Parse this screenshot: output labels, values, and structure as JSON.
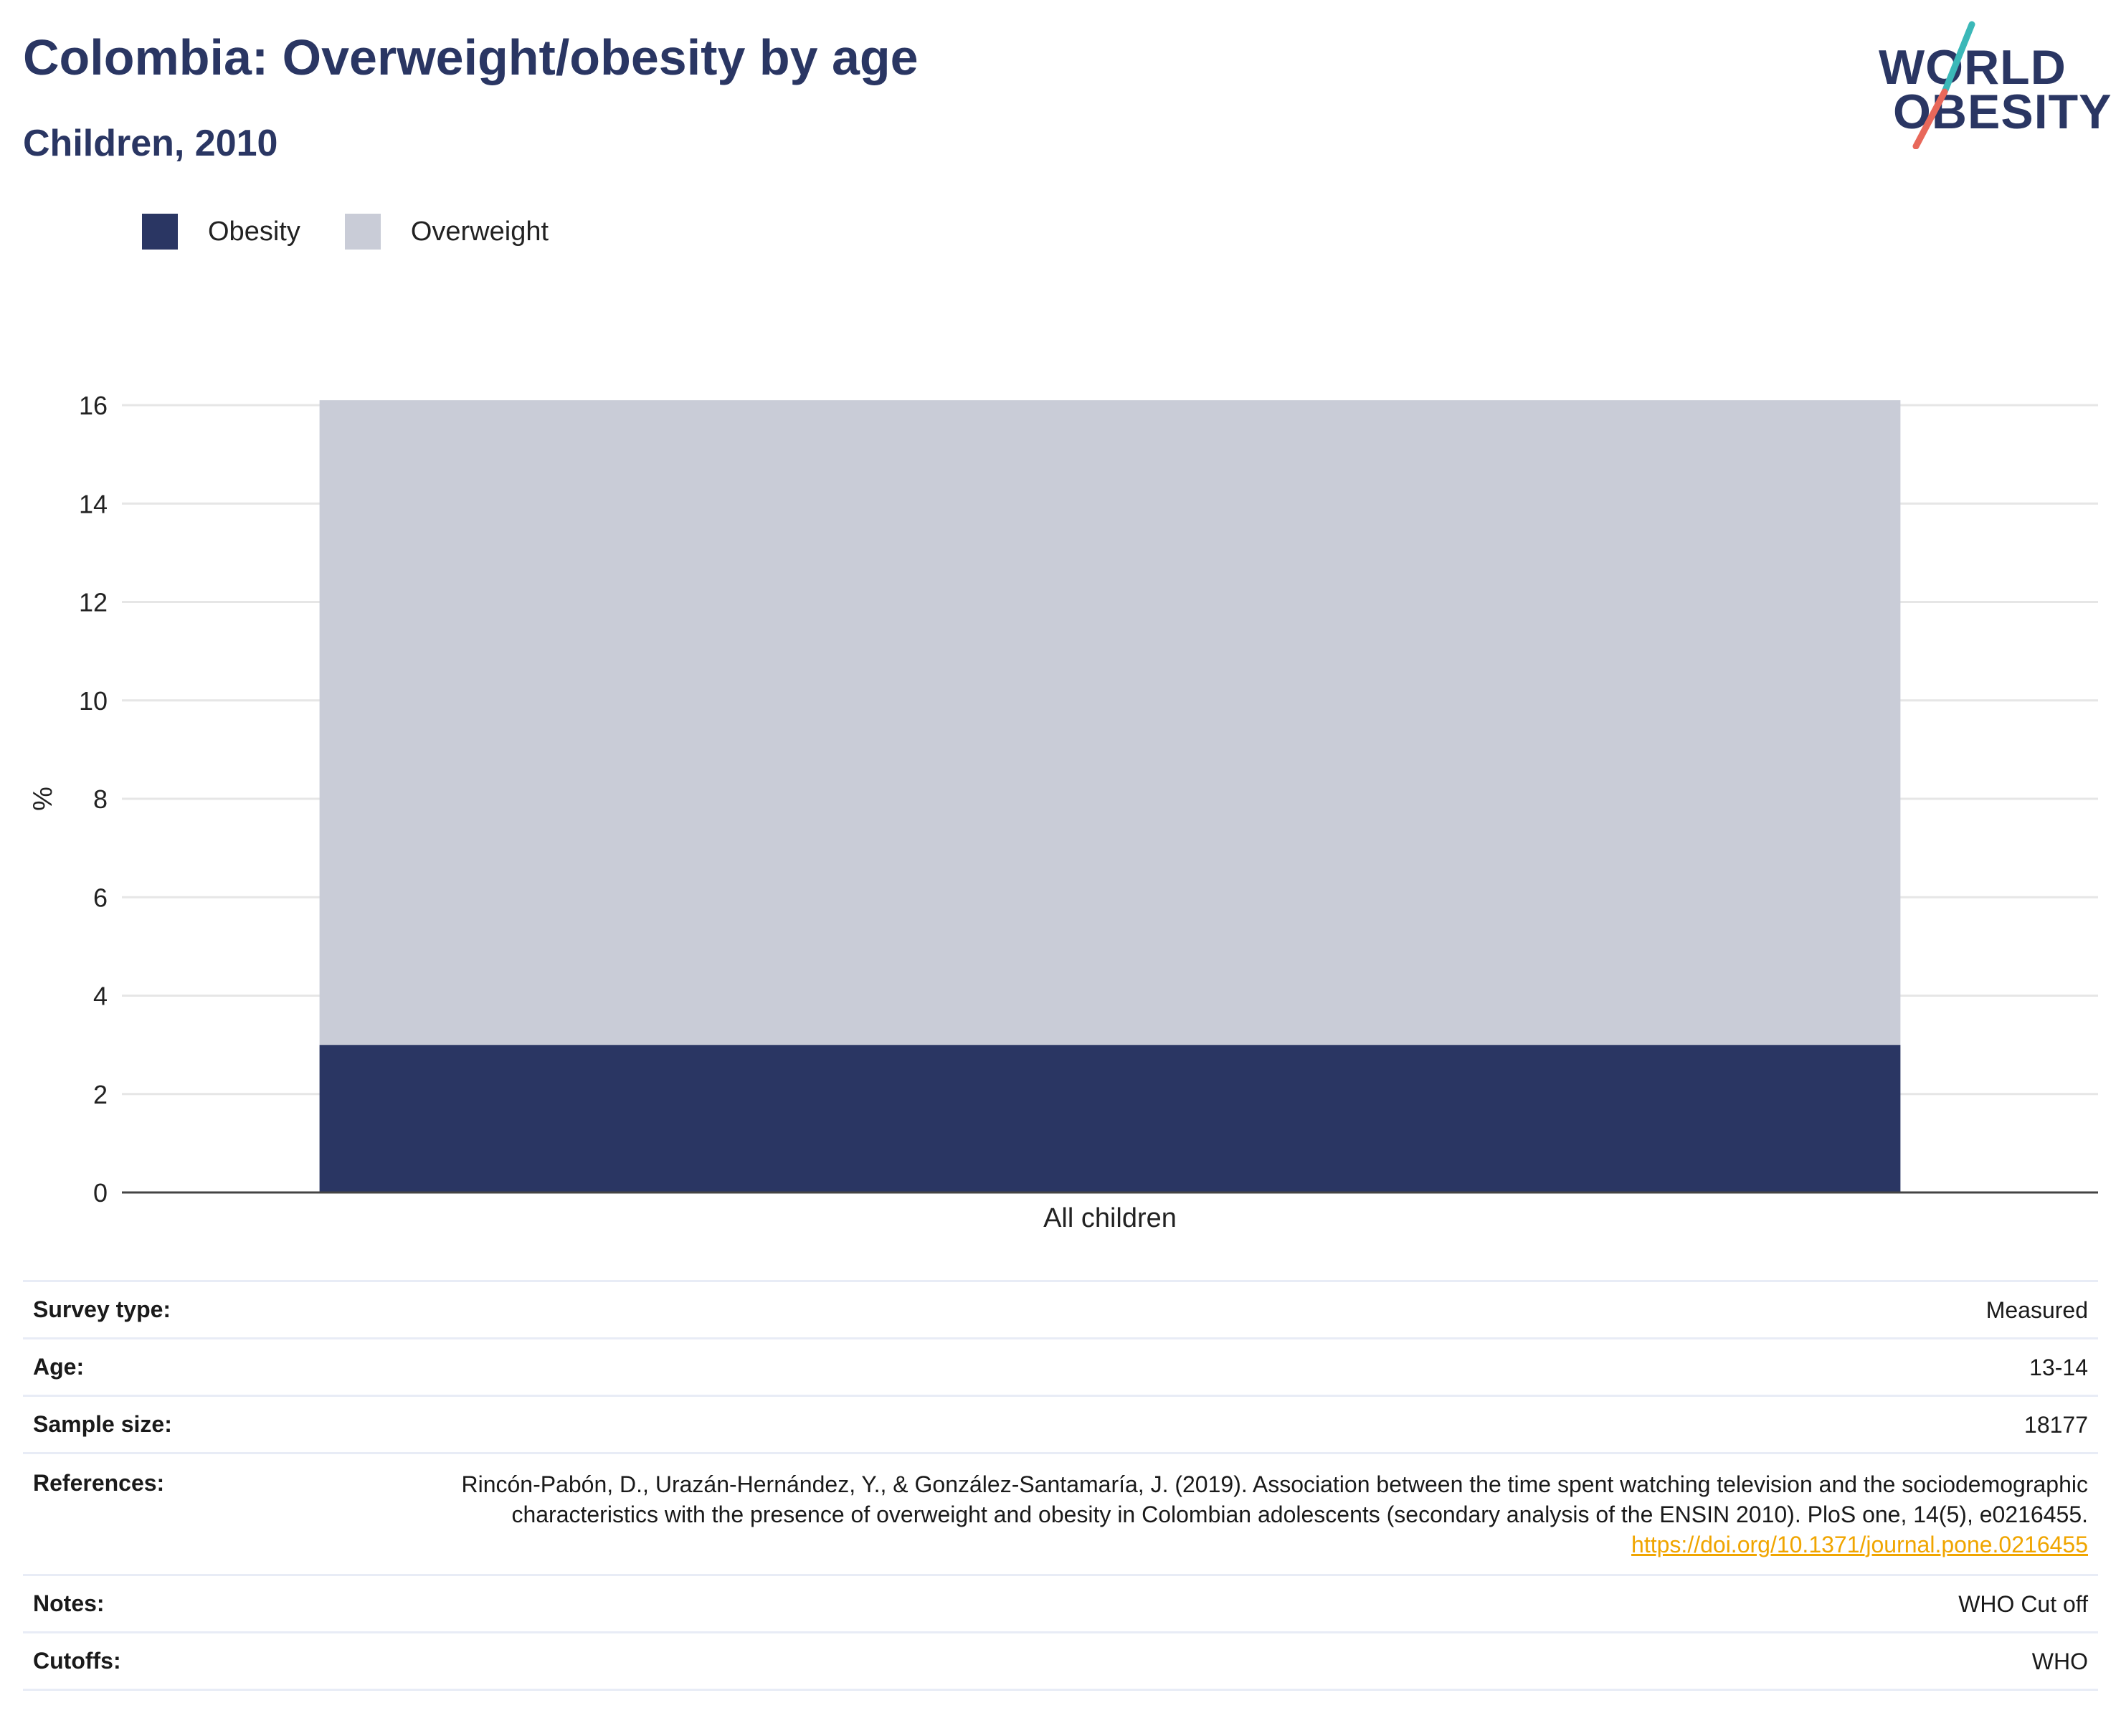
{
  "header": {
    "title": "Colombia: Overweight/obesity by age",
    "subtitle": "Children, 2010"
  },
  "logo": {
    "line1": "WORLD",
    "line2": "OBESITY",
    "colors": {
      "text": "#2a3663",
      "slash_top": "#3bb8b8",
      "slash_bottom": "#e8685a"
    }
  },
  "legend": {
    "items": [
      {
        "label": "Obesity",
        "color": "#2a3663"
      },
      {
        "label": "Overweight",
        "color": "#c9ccd7"
      }
    ]
  },
  "chart_data": {
    "type": "bar",
    "stacked": true,
    "categories": [
      "All children"
    ],
    "series": [
      {
        "name": "Obesity",
        "values": [
          3.0
        ],
        "color": "#2a3663"
      },
      {
        "name": "Overweight",
        "values": [
          13.1
        ],
        "color": "#c9ccd7"
      }
    ],
    "ylabel": "%",
    "ylim": [
      0,
      16
    ],
    "yticks": [
      0,
      2,
      4,
      6,
      8,
      10,
      12,
      14,
      16
    ],
    "grid": true,
    "legend_position": "top-left"
  },
  "info": {
    "survey_type": {
      "label": "Survey type:",
      "value": "Measured"
    },
    "age": {
      "label": "Age:",
      "value": "13-14"
    },
    "sample_size": {
      "label": "Sample size:",
      "value": "18177"
    },
    "references": {
      "label": "References:",
      "text": "Rincón-Pabón, D., Urazán-Hernández, Y., & González-Santamaría, J. (2019). Association between the time spent watching television and the sociodemographic characteristics with the presence of overweight and obesity in Colombian adolescents (secondary analysis of the ENSIN 2010). PloS one, 14(5), e0216455.",
      "link": "https://doi.org/10.1371/journal.pone.0216455"
    },
    "notes": {
      "label": "Notes:",
      "value": "WHO Cut off"
    },
    "cutoffs": {
      "label": "Cutoffs:",
      "value": "WHO"
    }
  }
}
